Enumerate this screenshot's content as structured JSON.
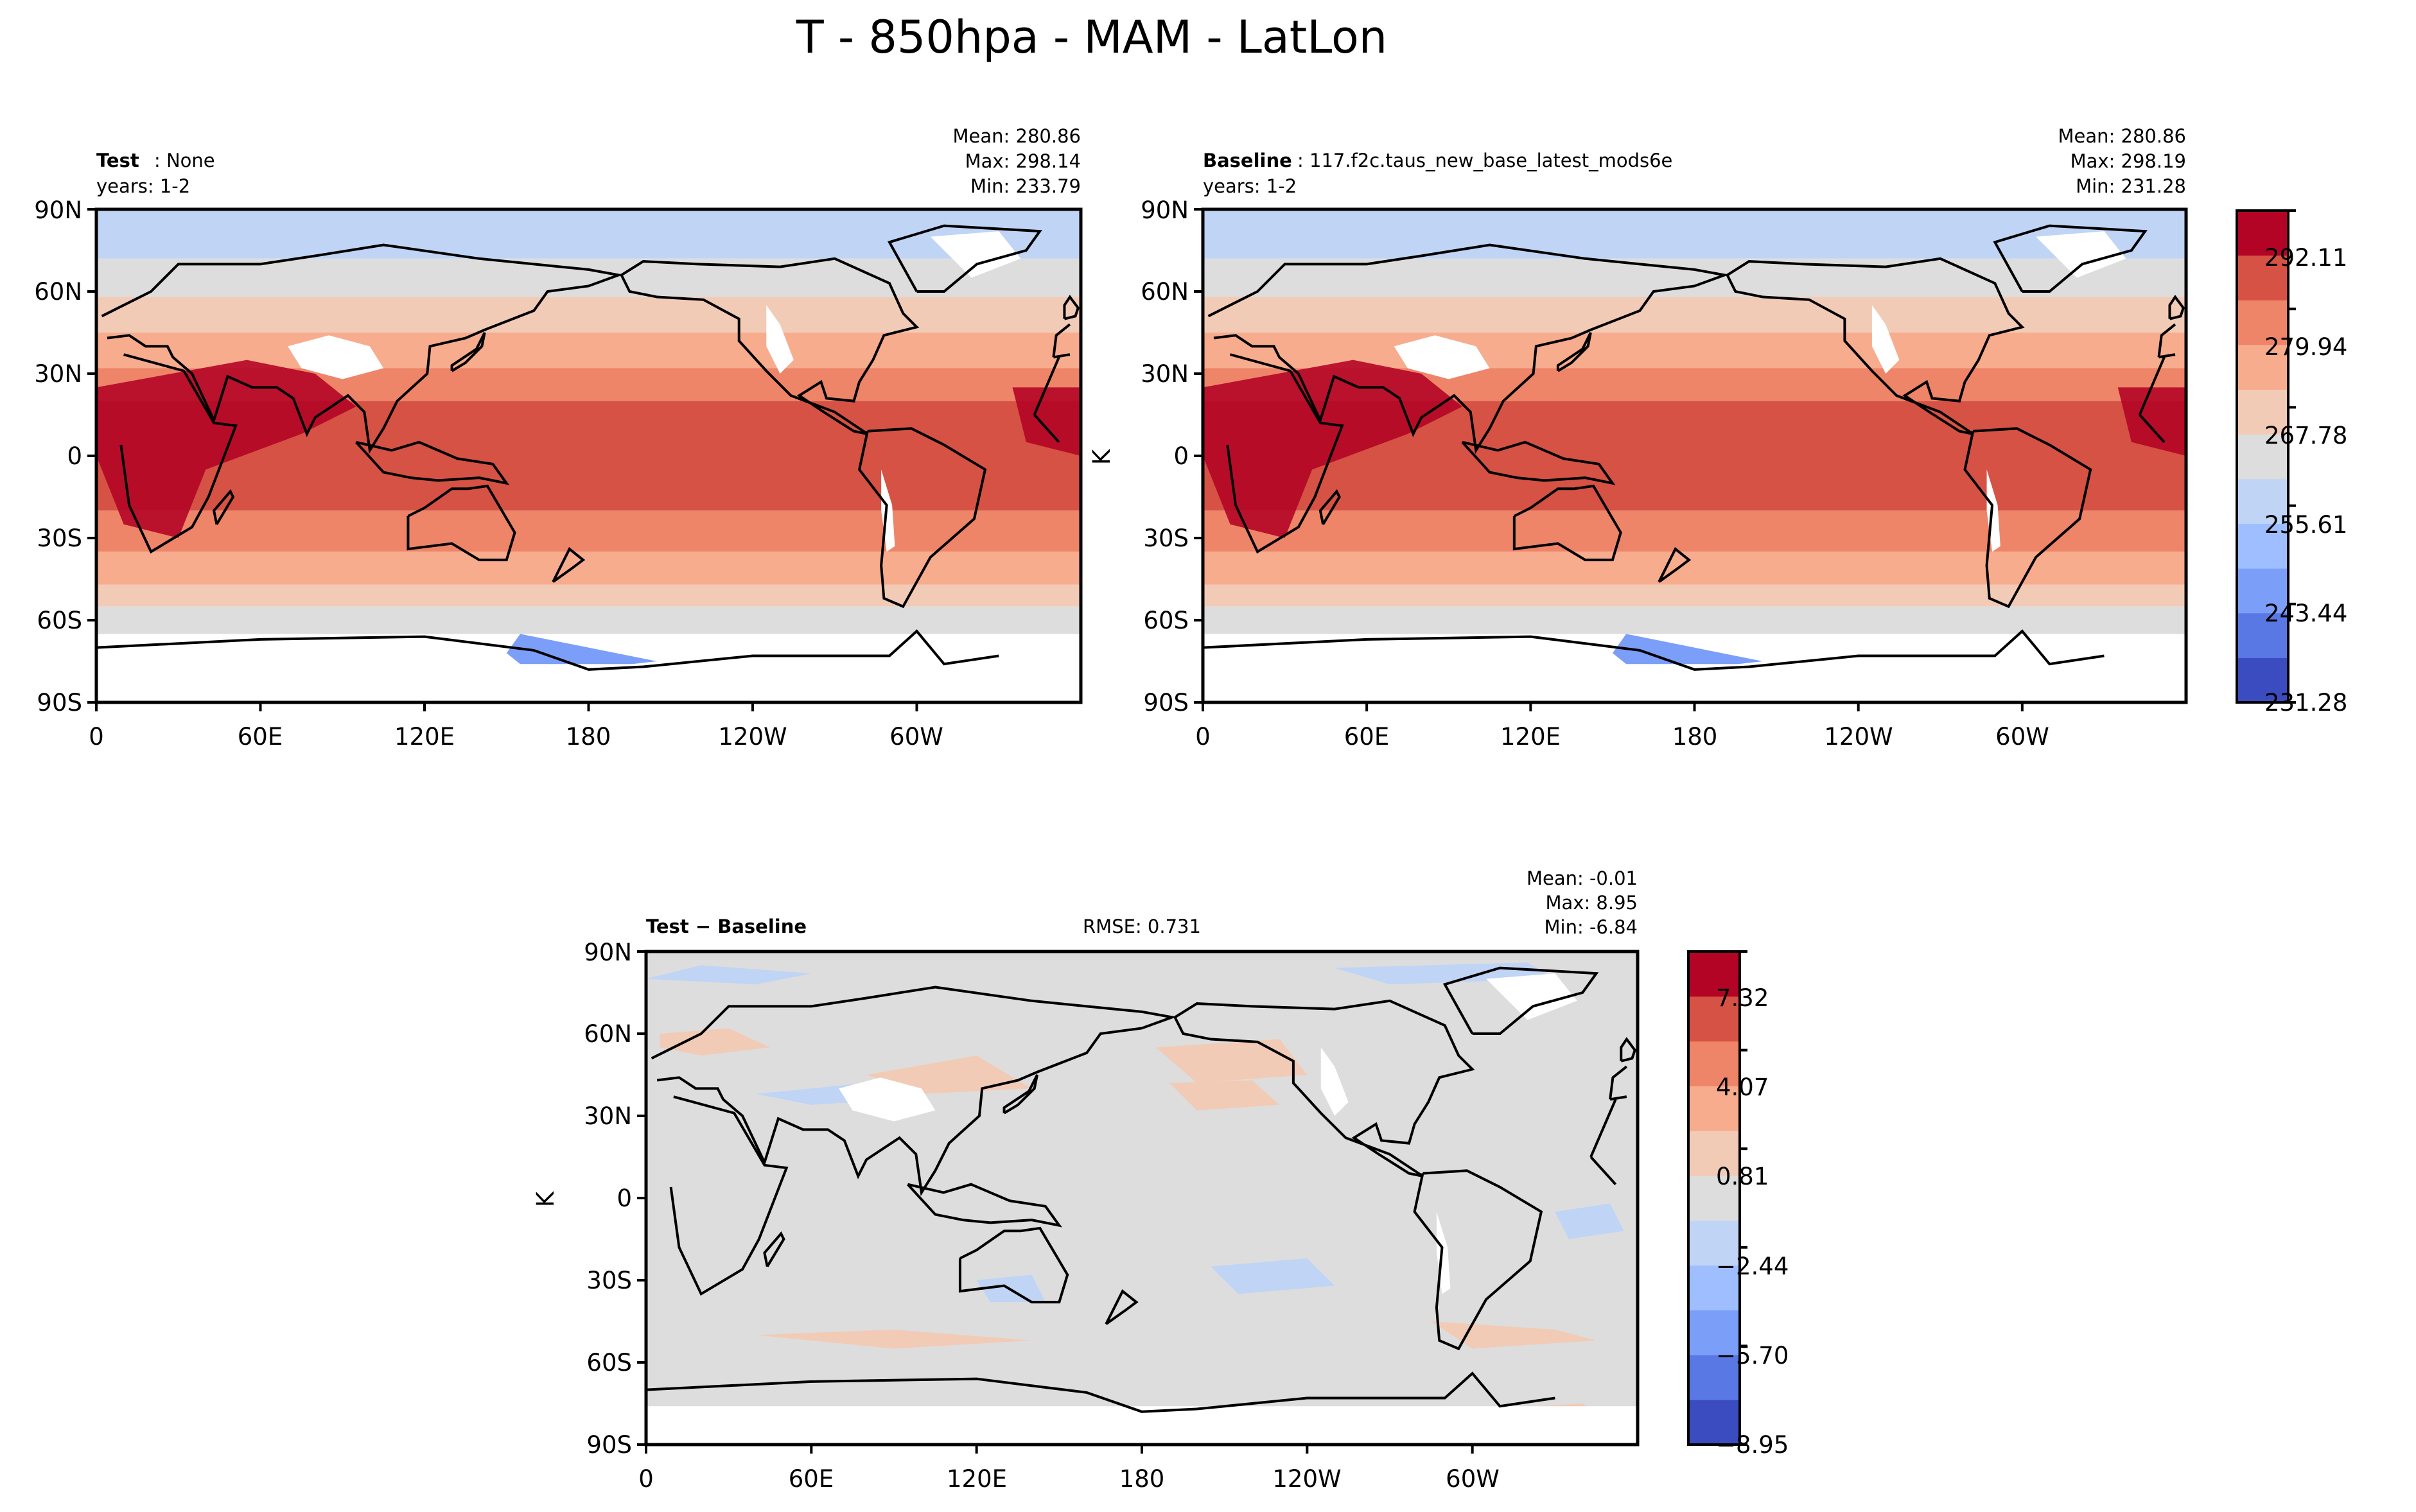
{
  "figure": {
    "title": "T - 850hpa - MAM - LatLon"
  },
  "colors": {
    "diverging": [
      "#3b4cc0",
      "#5a78e4",
      "#7b9ff9",
      "#9ebeff",
      "#c0d4f5",
      "#dddddd",
      "#f2cbb7",
      "#f7ac8e",
      "#ee8468",
      "#d65244",
      "#b40426"
    ],
    "land_missing": "#ffffff",
    "coast": "#000000"
  },
  "chart_data": [
    {
      "type": "heatmap",
      "panel": "test",
      "title_bold": "Test",
      "title_rest": " : None",
      "subtitle": "years: 1-2",
      "ylabel": "",
      "stats": [
        "Mean: 280.86",
        "Max: 298.14",
        "Min: 233.79"
      ],
      "xticks": [
        "0",
        "60E",
        "120E",
        "180",
        "120W",
        "60W"
      ],
      "yticks": [
        "90N",
        "60N",
        "30N",
        "0",
        "30S",
        "60S",
        "90S"
      ],
      "xlim": [
        0,
        360
      ],
      "ylim": [
        -90,
        90
      ],
      "value_range": [
        231.28,
        298.19
      ]
    },
    {
      "type": "heatmap",
      "panel": "baseline",
      "title_bold": "Baseline",
      "title_rest": " : 117.f2c.taus_new_base_latest_mods6e",
      "subtitle": "years: 1-2",
      "ylabel": "K",
      "stats": [
        "Mean: 280.86",
        "Max: 298.19",
        "Min: 231.28"
      ],
      "xticks": [
        "0",
        "60E",
        "120E",
        "180",
        "120W",
        "60W"
      ],
      "yticks": [
        "90N",
        "60N",
        "30N",
        "0",
        "30S",
        "60S",
        "90S"
      ],
      "xlim": [
        0,
        360
      ],
      "ylim": [
        -90,
        90
      ],
      "value_range": [
        231.28,
        298.19
      ],
      "colorbar": {
        "ticks": [
          "292.11",
          "279.94",
          "267.78",
          "255.61",
          "243.44",
          "231.28"
        ],
        "range": [
          231.28,
          298.19
        ]
      }
    },
    {
      "type": "heatmap",
      "panel": "diff",
      "title_bold": "Test − Baseline",
      "title_rest": "",
      "subtitle": "",
      "center_text": "RMSE: 0.731",
      "ylabel": "K",
      "stats": [
        "Mean: -0.01",
        "Max:  8.95",
        "Min: -6.84"
      ],
      "xticks": [
        "0",
        "60E",
        "120E",
        "180",
        "120W",
        "60W"
      ],
      "yticks": [
        "90N",
        "60N",
        "30N",
        "0",
        "30S",
        "60S",
        "90S"
      ],
      "xlim": [
        0,
        360
      ],
      "ylim": [
        -90,
        90
      ],
      "value_range": [
        -8.95,
        8.95
      ],
      "colorbar": {
        "ticks": [
          "7.32",
          "4.07",
          "0.81",
          "−2.44",
          "−5.70",
          "−8.95"
        ],
        "range": [
          -8.95,
          8.95
        ]
      }
    }
  ]
}
